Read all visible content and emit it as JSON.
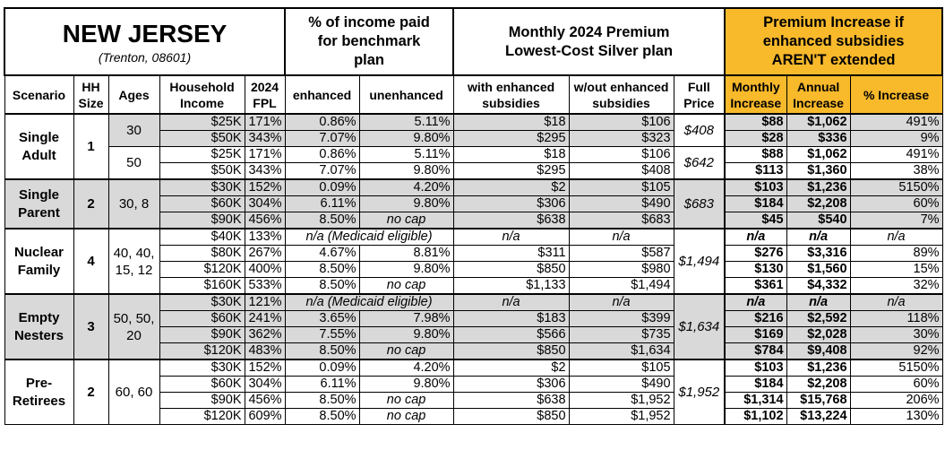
{
  "header": {
    "state": "NEW JERSEY",
    "location": "(Trenton, 08601)",
    "pct_income_group": "% of income paid for benchmark plan",
    "premium_group": "Monthly 2024 Premium Lowest-Cost Silver plan",
    "increase_group": "Premium Increase if enhanced subsidies AREN'T extended"
  },
  "columns": {
    "scenario": "Scenario",
    "hh_size": "HH Size",
    "ages": "Ages",
    "income": "Household Income",
    "fpl": "2024 FPL",
    "enhanced": "enhanced",
    "unenhanced": "unenhanced",
    "with_subsidies": "with enhanced subsidies",
    "without_subsidies": "w/out enhanced subsidies",
    "full_price": "Full Price",
    "monthly_increase": "Monthly Increase",
    "annual_increase": "Annual Increase",
    "pct_increase": "% Increase"
  },
  "colors": {
    "highlight": "#f8b92b",
    "shaded": "#d9d9d9"
  },
  "groups": [
    {
      "scenario": "Single Adult",
      "hh_size": "1",
      "subgroups": [
        {
          "ages": "30",
          "full_price": "$408",
          "shaded": true,
          "rows": [
            {
              "income": "$25K",
              "fpl": "171%",
              "enhanced": "0.86%",
              "unenhanced": "5.11%",
              "with": "$18",
              "without": "$106",
              "monthly": "$88",
              "annual": "$1,062",
              "pct": "491%"
            },
            {
              "income": "$50K",
              "fpl": "343%",
              "enhanced": "7.07%",
              "unenhanced": "9.80%",
              "with": "$295",
              "without": "$323",
              "monthly": "$28",
              "annual": "$336",
              "pct": "9%"
            }
          ]
        },
        {
          "ages": "50",
          "full_price": "$642",
          "shaded": false,
          "rows": [
            {
              "income": "$25K",
              "fpl": "171%",
              "enhanced": "0.86%",
              "unenhanced": "5.11%",
              "with": "$18",
              "without": "$106",
              "monthly": "$88",
              "annual": "$1,062",
              "pct": "491%"
            },
            {
              "income": "$50K",
              "fpl": "343%",
              "enhanced": "7.07%",
              "unenhanced": "9.80%",
              "with": "$295",
              "without": "$408",
              "monthly": "$113",
              "annual": "$1,360",
              "pct": "38%"
            }
          ]
        }
      ]
    },
    {
      "scenario": "Single Parent",
      "hh_size": "2",
      "subgroups": [
        {
          "ages": "30, 8",
          "full_price": "$683",
          "shaded": true,
          "rows": [
            {
              "income": "$30K",
              "fpl": "152%",
              "enhanced": "0.09%",
              "unenhanced": "4.20%",
              "with": "$2",
              "without": "$105",
              "monthly": "$103",
              "annual": "$1,236",
              "pct": "5150%"
            },
            {
              "income": "$60K",
              "fpl": "304%",
              "enhanced": "6.11%",
              "unenhanced": "9.80%",
              "with": "$306",
              "without": "$490",
              "monthly": "$184",
              "annual": "$2,208",
              "pct": "60%"
            },
            {
              "income": "$90K",
              "fpl": "456%",
              "enhanced": "8.50%",
              "unenhanced": "no cap",
              "with": "$638",
              "without": "$683",
              "monthly": "$45",
              "annual": "$540",
              "pct": "7%"
            }
          ]
        }
      ]
    },
    {
      "scenario": "Nuclear Family",
      "hh_size": "4",
      "subgroups": [
        {
          "ages": "40, 40, 15, 12",
          "full_price": "$1,494",
          "shaded": false,
          "rows": [
            {
              "income": "$40K",
              "fpl": "133%",
              "medicaid": "n/a (Medicaid eligible)",
              "with": "n/a",
              "without": "n/a",
              "monthly": "n/a",
              "annual": "n/a",
              "pct": "n/a"
            },
            {
              "income": "$80K",
              "fpl": "267%",
              "enhanced": "4.67%",
              "unenhanced": "8.81%",
              "with": "$311",
              "without": "$587",
              "monthly": "$276",
              "annual": "$3,316",
              "pct": "89%"
            },
            {
              "income": "$120K",
              "fpl": "400%",
              "enhanced": "8.50%",
              "unenhanced": "9.80%",
              "with": "$850",
              "without": "$980",
              "monthly": "$130",
              "annual": "$1,560",
              "pct": "15%"
            },
            {
              "income": "$160K",
              "fpl": "533%",
              "enhanced": "8.50%",
              "unenhanced": "no cap",
              "with": "$1,133",
              "without": "$1,494",
              "monthly": "$361",
              "annual": "$4,332",
              "pct": "32%"
            }
          ]
        }
      ]
    },
    {
      "scenario": "Empty Nesters",
      "hh_size": "3",
      "subgroups": [
        {
          "ages": "50, 50, 20",
          "full_price": "$1,634",
          "shaded": true,
          "rows": [
            {
              "income": "$30K",
              "fpl": "121%",
              "medicaid": "n/a (Medicaid eligible)",
              "with": "n/a",
              "without": "n/a",
              "monthly": "n/a",
              "annual": "n/a",
              "pct": "n/a"
            },
            {
              "income": "$60K",
              "fpl": "241%",
              "enhanced": "3.65%",
              "unenhanced": "7.98%",
              "with": "$183",
              "without": "$399",
              "monthly": "$216",
              "annual": "$2,592",
              "pct": "118%"
            },
            {
              "income": "$90K",
              "fpl": "362%",
              "enhanced": "7.55%",
              "unenhanced": "9.80%",
              "with": "$566",
              "without": "$735",
              "monthly": "$169",
              "annual": "$2,028",
              "pct": "30%"
            },
            {
              "income": "$120K",
              "fpl": "483%",
              "enhanced": "8.50%",
              "unenhanced": "no cap",
              "with": "$850",
              "without": "$1,634",
              "monthly": "$784",
              "annual": "$9,408",
              "pct": "92%"
            }
          ]
        }
      ]
    },
    {
      "scenario": "Pre-Retirees",
      "hh_size": "2",
      "subgroups": [
        {
          "ages": "60, 60",
          "full_price": "$1,952",
          "shaded": false,
          "rows": [
            {
              "income": "$30K",
              "fpl": "152%",
              "enhanced": "0.09%",
              "unenhanced": "4.20%",
              "with": "$2",
              "without": "$105",
              "monthly": "$103",
              "annual": "$1,236",
              "pct": "5150%"
            },
            {
              "income": "$60K",
              "fpl": "304%",
              "enhanced": "6.11%",
              "unenhanced": "9.80%",
              "with": "$306",
              "without": "$490",
              "monthly": "$184",
              "annual": "$2,208",
              "pct": "60%"
            },
            {
              "income": "$90K",
              "fpl": "456%",
              "enhanced": "8.50%",
              "unenhanced": "no cap",
              "with": "$638",
              "without": "$1,952",
              "monthly": "$1,314",
              "annual": "$15,768",
              "pct": "206%"
            },
            {
              "income": "$120K",
              "fpl": "609%",
              "enhanced": "8.50%",
              "unenhanced": "no cap",
              "with": "$850",
              "without": "$1,952",
              "monthly": "$1,102",
              "annual": "$13,224",
              "pct": "130%"
            }
          ]
        }
      ]
    }
  ]
}
